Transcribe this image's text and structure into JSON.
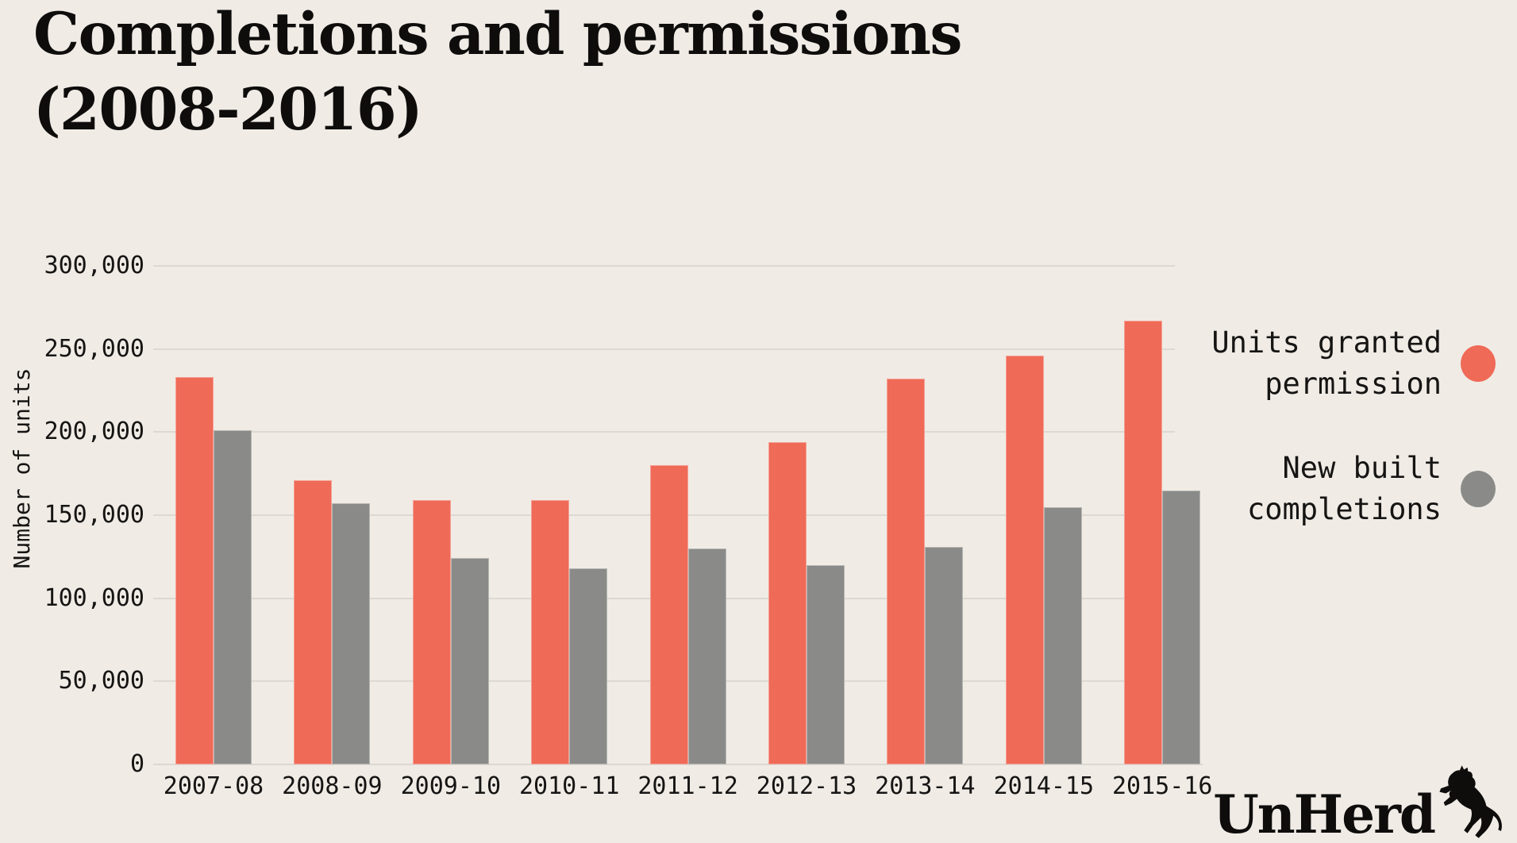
{
  "title": {
    "line1": "Completions and permissions",
    "line2": "(2008-2016)"
  },
  "branding": {
    "wordmark": "UnHerd",
    "icon": "rearing-cow-silhouette"
  },
  "colors": {
    "background": "#f0ebe5",
    "gridline": "#dcd8d2",
    "text": "#161514",
    "permission_red": "#ef6a57",
    "completion_gray": "#8a8b89"
  },
  "chart_data": {
    "type": "bar",
    "title": "Completions and permissions (2008-2016)",
    "categories": [
      "2007-08",
      "2008-09",
      "2009-10",
      "2010-11",
      "2011-12",
      "2012-13",
      "2013-14",
      "2014-15",
      "2015-16"
    ],
    "series": [
      {
        "name": "Units granted permission",
        "color": "#ef6a57",
        "values": [
          233000,
          171000,
          159000,
          159000,
          180000,
          194000,
          232000,
          246000,
          267000
        ]
      },
      {
        "name": "New built completions",
        "color": "#8a8b89",
        "values": [
          201000,
          157000,
          124000,
          118000,
          130000,
          120000,
          131000,
          155000,
          165000
        ]
      }
    ],
    "xlabel": "",
    "ylabel": "Number of units",
    "ylim": [
      0,
      300000
    ],
    "ytick_step": 50000,
    "ytick_labels": [
      "300,000",
      "250,000",
      "200,000",
      "150,000",
      "100,000",
      "50,000",
      "0"
    ],
    "grid": "horizontal-only",
    "legend_position": "right"
  }
}
